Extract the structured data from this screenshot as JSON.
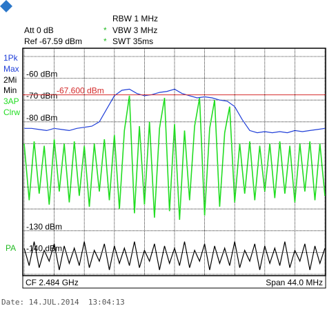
{
  "header": {
    "rbw": "RBW 1 MHz",
    "att": "Att 0 dB",
    "vbw_flag": "*",
    "vbw": "VBW 3 MHz",
    "ref": "Ref -67.59 dBm",
    "swt_flag": "*",
    "swt": "SWT 35ms"
  },
  "chart_data": {
    "type": "line",
    "ylim": [
      -150,
      -50
    ],
    "yticks": [
      -50,
      {
        "value": -60,
        "label": "-60 dBm"
      },
      {
        "value": -70,
        "label": "-70 dBm"
      },
      {
        "value": -80,
        "label": "-80 dBm"
      },
      -90,
      -100,
      -110,
      -120,
      {
        "value": -130,
        "label": "-130 dBm"
      },
      {
        "value": -140,
        "label": "-140 dBm"
      },
      -150
    ],
    "grid": true,
    "ref_line": {
      "value": -67.6,
      "label": "-67.600 dBm",
      "color": "#d42a2a"
    },
    "series": [
      {
        "name": [
          "1Pk",
          "Max"
        ],
        "color": "#1f3ed8",
        "values": [
          -83,
          -83,
          -83.5,
          -84,
          -83,
          -83.5,
          -84,
          -83,
          -82.5,
          -82,
          -80,
          -74,
          -68,
          -65.5,
          -65,
          -67,
          -68,
          -67.5,
          -66.5,
          -66,
          -65,
          -67,
          -68,
          -69,
          -68.5,
          -69,
          -70,
          -70.5,
          -73,
          -79,
          -84,
          -85,
          -84.5,
          -85,
          -84.5,
          -85,
          -84,
          -84.5,
          -84,
          -83.5,
          -83
        ]
      },
      {
        "name": [
          "3AP",
          "Clrw"
        ],
        "color": "#22dd22",
        "values": [
          -90,
          -116,
          -89,
          -113,
          -91,
          -118,
          -88,
          -112,
          -90,
          -117,
          -89,
          -114,
          -91,
          -119,
          -90,
          -112,
          -88,
          -116,
          -86,
          -120,
          -84,
          -68,
          -122,
          -82,
          -118,
          -80,
          -124,
          -83,
          -69,
          -121,
          -81,
          -125,
          -84,
          -116,
          -82,
          -69,
          -123,
          -83,
          -70,
          -119,
          -85,
          -73,
          -117,
          -90,
          -113,
          -89,
          -116,
          -91,
          -112,
          -90,
          -115,
          -89,
          -113,
          -91,
          -117,
          -90,
          -112,
          -89,
          -116,
          -90,
          -114
        ]
      },
      {
        "name": [
          "2Mi",
          "Min"
        ],
        "color": "#000000",
        "values": [
          -138,
          -146,
          -135,
          -147,
          -139,
          -144,
          -136,
          -148,
          -137,
          -145,
          -138,
          -146,
          -135,
          -147,
          -139,
          -144,
          -136,
          -148,
          -137,
          -145,
          -138,
          -146,
          -135,
          -147,
          -139,
          -144,
          -136,
          -148,
          -137,
          -145,
          -138,
          -146,
          -135,
          -147,
          -139,
          -144,
          -136,
          -148,
          -137,
          -145,
          -138,
          -146,
          -135,
          -147,
          -139,
          -144,
          -136,
          -148,
          -137,
          -145,
          -138,
          -146,
          -135,
          -147,
          -139,
          -144,
          -136,
          -148,
          -137,
          -145,
          -138
        ]
      }
    ],
    "pa_label": "PA"
  },
  "footer": {
    "cf": "CF 2.484 GHz",
    "span": "Span 44.0 MHz",
    "date": "Date: 14.JUL.2014  13:04:13"
  }
}
